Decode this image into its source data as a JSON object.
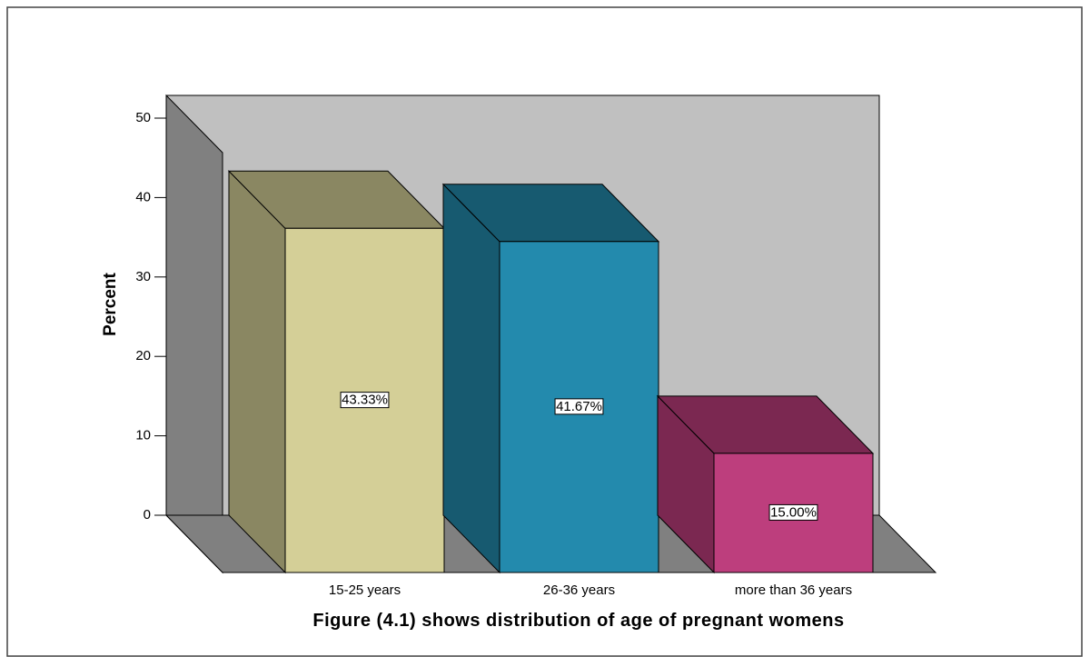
{
  "chart_data": {
    "type": "bar3d",
    "title": "Figure (4.1) shows distribution of age of pregnant womens",
    "y_label": "Percent",
    "categories": [
      "15-25 years",
      "26-36 years",
      "more than 36 years"
    ],
    "values": [
      43.33,
      41.67,
      15.0
    ],
    "value_labels": [
      "43.33%",
      "41.67%",
      "15.00%"
    ],
    "colors": [
      "#d4cf97",
      "#238aad",
      "#bd3e7d"
    ],
    "ylim": [
      0,
      50
    ],
    "yticks": [
      0,
      10,
      20,
      30,
      40,
      50
    ]
  }
}
